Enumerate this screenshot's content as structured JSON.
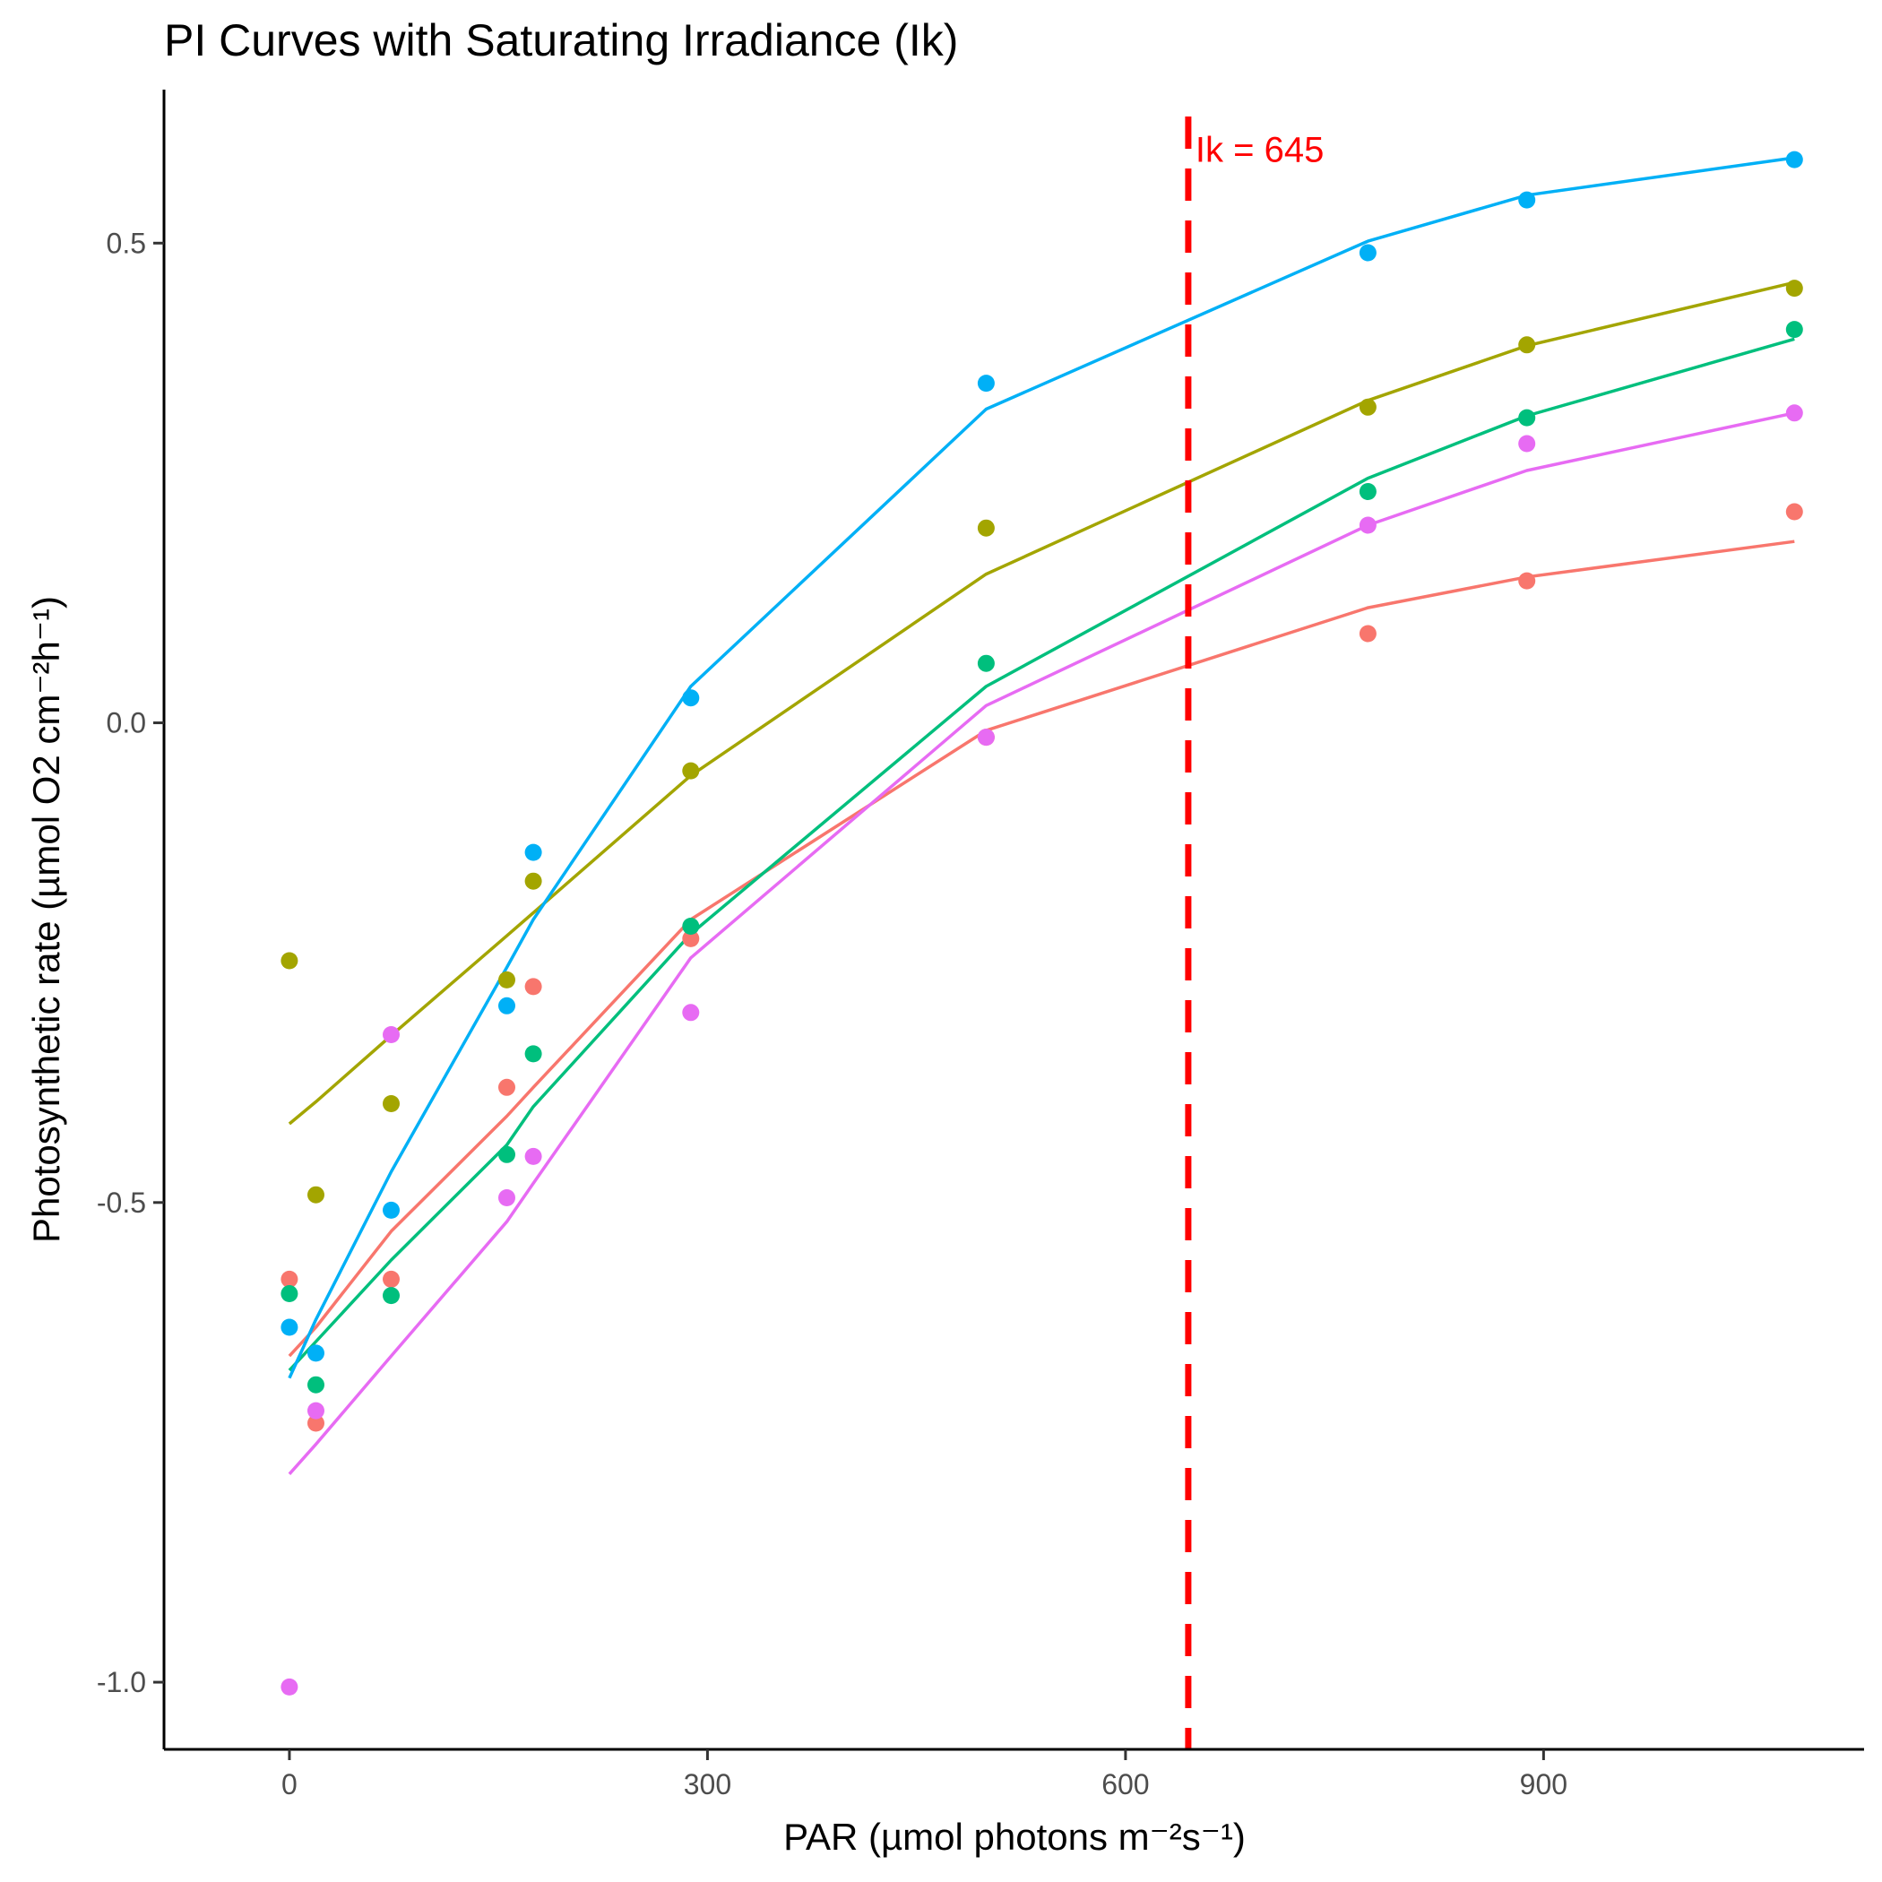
{
  "chart_data": {
    "type": "scatter",
    "title": "PI Curves with Saturating Irradiance (Ik)",
    "xlabel": "PAR (µmol photons m⁻²s⁻¹)",
    "ylabel": "Photosynthetic rate (µmol O2 cm⁻²h⁻¹)",
    "xlim": [
      -90,
      1130
    ],
    "ylim": [
      -1.07,
      0.66
    ],
    "x_ticks": [
      0,
      300,
      600,
      900
    ],
    "x_tick_labels": [
      "0",
      "300",
      "600",
      "900"
    ],
    "y_ticks": [
      -1.0,
      -0.5,
      0.0,
      0.5
    ],
    "y_tick_labels": [
      "-1.0",
      "-0.5",
      "0.0",
      "0.5"
    ],
    "grid": false,
    "legend": "none",
    "series": [
      {
        "color": "#F8766D",
        "points": [
          [
            0,
            -0.58
          ],
          [
            19,
            -0.73
          ],
          [
            73,
            -0.58
          ],
          [
            156,
            -0.38
          ],
          [
            175,
            -0.275
          ],
          [
            288,
            -0.225
          ],
          [
            500,
            -0.015
          ],
          [
            774,
            0.093
          ],
          [
            888,
            0.148
          ],
          [
            1080,
            0.22
          ]
        ],
        "fit": [
          [
            0,
            -0.66
          ],
          [
            19,
            -0.63
          ],
          [
            73,
            -0.53
          ],
          [
            156,
            -0.41
          ],
          [
            175,
            -0.38
          ],
          [
            288,
            -0.205
          ],
          [
            500,
            -0.008
          ],
          [
            774,
            0.12
          ],
          [
            888,
            0.152
          ],
          [
            1080,
            0.189
          ]
        ]
      },
      {
        "color": "#A3A500",
        "points": [
          [
            0,
            -0.248
          ],
          [
            19,
            -0.492
          ],
          [
            73,
            -0.397
          ],
          [
            156,
            -0.268
          ],
          [
            175,
            -0.165
          ],
          [
            288,
            -0.05
          ],
          [
            500,
            0.203
          ],
          [
            774,
            0.329
          ],
          [
            888,
            0.394
          ],
          [
            1080,
            0.453
          ]
        ],
        "fit": [
          [
            0,
            -0.418
          ],
          [
            19,
            -0.395
          ],
          [
            73,
            -0.326
          ],
          [
            156,
            -0.222
          ],
          [
            175,
            -0.198
          ],
          [
            288,
            -0.055
          ],
          [
            500,
            0.155
          ],
          [
            774,
            0.336
          ],
          [
            888,
            0.393
          ],
          [
            1080,
            0.459
          ]
        ]
      },
      {
        "color": "#00BF7D",
        "points": [
          [
            0,
            -0.595
          ],
          [
            19,
            -0.69
          ],
          [
            73,
            -0.597
          ],
          [
            156,
            -0.45
          ],
          [
            175,
            -0.345
          ],
          [
            288,
            -0.212
          ],
          [
            500,
            0.062
          ],
          [
            774,
            0.241
          ],
          [
            888,
            0.318
          ],
          [
            1080,
            0.41
          ]
        ],
        "fit": [
          [
            0,
            -0.675
          ],
          [
            19,
            -0.645
          ],
          [
            73,
            -0.56
          ],
          [
            156,
            -0.44
          ],
          [
            175,
            -0.4
          ],
          [
            288,
            -0.22
          ],
          [
            500,
            0.038
          ],
          [
            774,
            0.255
          ],
          [
            888,
            0.32
          ],
          [
            1080,
            0.4
          ]
        ]
      },
      {
        "color": "#00B0F6",
        "points": [
          [
            0,
            -0.63
          ],
          [
            19,
            -0.657
          ],
          [
            73,
            -0.508
          ],
          [
            156,
            -0.295
          ],
          [
            175,
            -0.135
          ],
          [
            288,
            0.026
          ],
          [
            500,
            0.354
          ],
          [
            774,
            0.49
          ],
          [
            888,
            0.545
          ],
          [
            1080,
            0.587
          ]
        ],
        "fit": [
          [
            0,
            -0.683
          ],
          [
            19,
            -0.622
          ],
          [
            73,
            -0.468
          ],
          [
            156,
            -0.255
          ],
          [
            175,
            -0.205
          ],
          [
            288,
            0.038
          ],
          [
            500,
            0.327
          ],
          [
            774,
            0.502
          ],
          [
            888,
            0.55
          ],
          [
            1080,
            0.589
          ]
        ]
      },
      {
        "color": "#E76BF3",
        "points": [
          [
            0,
            -1.005
          ],
          [
            19,
            -0.717
          ],
          [
            73,
            -0.325
          ],
          [
            156,
            -0.495
          ],
          [
            175,
            -0.452
          ],
          [
            288,
            -0.302
          ],
          [
            500,
            -0.015
          ],
          [
            774,
            0.206
          ],
          [
            888,
            0.291
          ],
          [
            1080,
            0.323
          ]
        ],
        "fit": [
          [
            0,
            -0.783
          ],
          [
            19,
            -0.752
          ],
          [
            73,
            -0.66
          ],
          [
            156,
            -0.52
          ],
          [
            175,
            -0.48
          ],
          [
            288,
            -0.245
          ],
          [
            500,
            0.018
          ],
          [
            774,
            0.206
          ],
          [
            888,
            0.263
          ],
          [
            1080,
            0.323
          ]
        ]
      }
    ],
    "vline": {
      "x": 645,
      "color": "#FF0000",
      "style": "dashed"
    },
    "annotation": {
      "text": "Ik = 645",
      "x": 645,
      "y": 0.585,
      "color": "#FF0000"
    }
  }
}
